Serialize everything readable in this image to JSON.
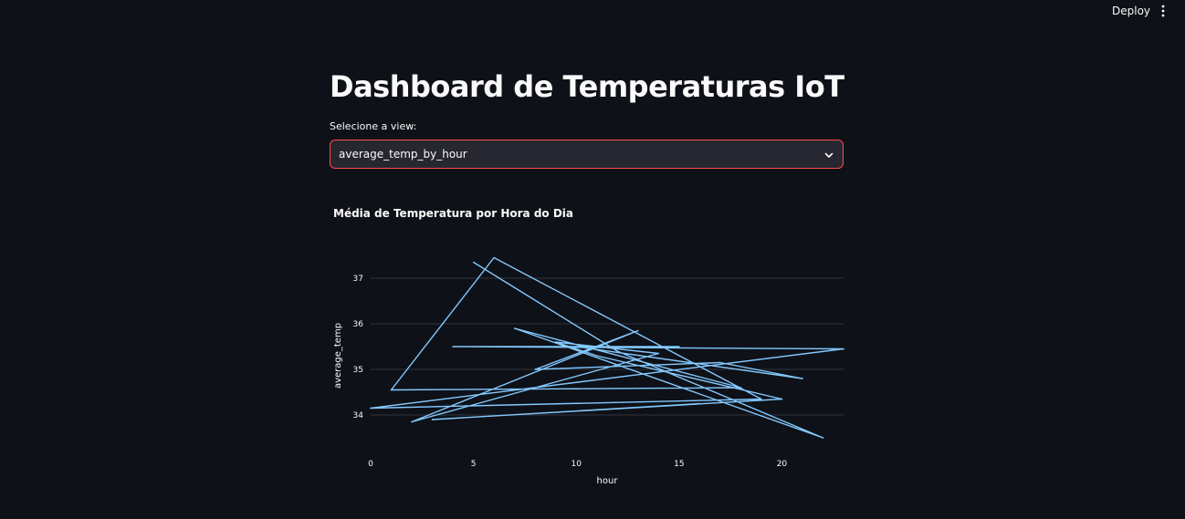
{
  "toolbar": {
    "deploy_label": "Deploy",
    "menu_icon": "kebab-menu-icon"
  },
  "page": {
    "title": "Dashboard de Temperaturas IoT"
  },
  "view_select": {
    "label": "Selecione a view:",
    "selected": "average_temp_by_hour",
    "icon": "chevron-down-icon",
    "accent_color": "#ff4b4b"
  },
  "chart_data": {
    "type": "line",
    "title": "Média de Temperatura por Hora do Dia",
    "xlabel": "hour",
    "ylabel": "average_temp",
    "xlim": [
      0,
      23
    ],
    "ylim": [
      33.2,
      37.6
    ],
    "xticks": [
      0,
      5,
      10,
      15,
      20
    ],
    "yticks": [
      34,
      35,
      36,
      37
    ],
    "grid": true,
    "line_color": "#83c9ff",
    "series": [
      {
        "x": [
          5,
          12,
          22,
          7,
          18,
          1,
          6,
          19,
          0,
          23,
          4,
          15,
          10,
          21,
          17,
          8,
          13,
          2,
          14,
          9,
          11,
          20,
          3,
          16
        ],
        "y": [
          37.35,
          35.4,
          33.5,
          35.9,
          34.6,
          34.55,
          37.45,
          34.35,
          34.15,
          35.45,
          35.5,
          35.5,
          35.5,
          34.8,
          35.15,
          35.0,
          35.85,
          33.85,
          35.35,
          35.6,
          35.3,
          34.35,
          33.9,
          34.25
        ]
      }
    ]
  }
}
